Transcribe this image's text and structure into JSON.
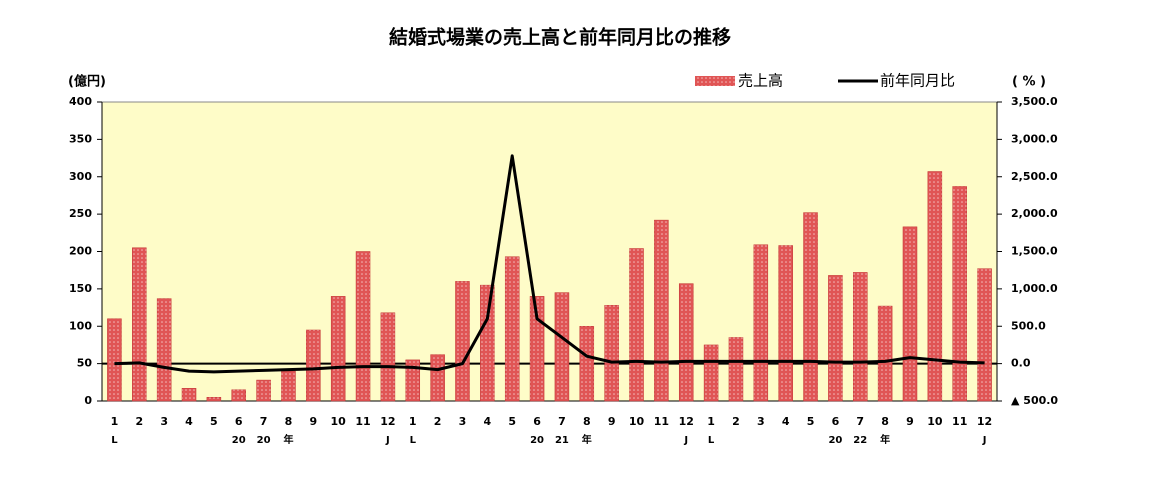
{
  "chart_data": {
    "type": "bar_line",
    "title": "結婚式場業の売上高と前年同月比の推移",
    "y_label": "(億円)",
    "y2_label": "( % )",
    "categories": [
      "1",
      "2",
      "3",
      "4",
      "5",
      "6",
      "7",
      "8",
      "9",
      "10",
      "11",
      "12",
      "1",
      "2",
      "3",
      "4",
      "5",
      "6",
      "7",
      "8",
      "9",
      "10",
      "11",
      "12",
      "1",
      "2",
      "3",
      "4",
      "5",
      "6",
      "7",
      "8",
      "9",
      "10",
      "11",
      "12"
    ],
    "sublabels": [
      "L",
      null,
      null,
      null,
      null,
      "20",
      "20",
      "年",
      null,
      null,
      null,
      "J",
      "L",
      null,
      null,
      null,
      null,
      "20",
      "21",
      "年",
      null,
      null,
      null,
      "J",
      "L",
      null,
      null,
      null,
      null,
      "20",
      "22",
      "年",
      null,
      null,
      null,
      "J"
    ],
    "series": [
      {
        "name": "売上高",
        "color": "#e05555",
        "values": [
          110,
          205,
          137,
          17,
          5,
          15,
          28,
          40,
          95,
          140,
          200,
          118,
          55,
          62,
          160,
          155,
          193,
          140,
          145,
          100,
          128,
          204,
          242,
          157,
          75,
          85,
          209,
          208,
          252,
          168,
          172,
          127,
          233,
          307,
          287,
          177
        ]
      },
      {
        "name": "前年同月比",
        "color": "#000000",
        "axis": "y2",
        "values": [
          0,
          10,
          -50,
          -100,
          -110,
          -100,
          -90,
          -80,
          -70,
          -50,
          -40,
          -40,
          -50,
          -80,
          0,
          600,
          2780,
          600,
          350,
          100,
          20,
          30,
          20,
          30,
          30,
          30,
          30,
          30,
          30,
          20,
          20,
          30,
          80,
          50,
          20,
          10
        ]
      }
    ],
    "ylim": [
      0,
      400
    ],
    "yticks": [
      0,
      50,
      100,
      150,
      200,
      250,
      300,
      350,
      400
    ],
    "y2lim": [
      -500,
      3500
    ],
    "y2ticks": [
      {
        "value": -500,
        "label": "▲ 500.0"
      },
      {
        "value": 0,
        "label": "0.0"
      },
      {
        "value": 500,
        "label": "500.0"
      },
      {
        "value": 1000,
        "label": "1,000.0"
      },
      {
        "value": 1500,
        "label": "1,500.0"
      },
      {
        "value": 2000,
        "label": "2,000.0"
      },
      {
        "value": 2500,
        "label": "2,500.0"
      },
      {
        "value": 3000,
        "label": "3,000.0"
      },
      {
        "value": 3500,
        "label": "3,500.0"
      }
    ],
    "plot_background": "#fefcc8"
  }
}
